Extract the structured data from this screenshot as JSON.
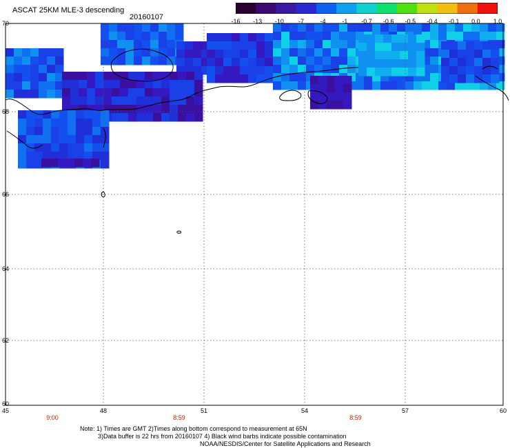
{
  "header": {
    "title": "ASCAT 25KM MLE-3 descending",
    "date": "20160107"
  },
  "colorbar": {
    "labels": [
      "-16",
      "-13",
      "-10",
      "-7",
      "-4",
      "-1",
      "-0.7",
      "-0.6",
      "-0.5",
      "-0.4",
      "-0.1",
      "0.0",
      "1.0"
    ],
    "colors": [
      "#2a0030",
      "#3c0a6e",
      "#3a1aa0",
      "#2a28d0",
      "#1060f0",
      "#10a0f0",
      "#10d0d0",
      "#10e070",
      "#50e010",
      "#c0e010",
      "#f0c010",
      "#f07010",
      "#f01010"
    ]
  },
  "map": {
    "lat_labels": [
      "70",
      "68",
      "66",
      "64",
      "62",
      "60"
    ],
    "lon_labels": [
      "45",
      "48",
      "51",
      "54",
      "57",
      "60"
    ],
    "time_labels": [
      "9:00",
      "8:59",
      "8:59"
    ]
  },
  "notes": {
    "line1": "Note: 1) Times are GMT 2)Times along bottom correspond to measurement at 65N",
    "line2": "3)Data buffer is 22 hrs from 20160107 4) Black wind barbs indicate possible contamination",
    "line3": "NOAA/NESDIS/Center for Satellite Applications and Research"
  }
}
